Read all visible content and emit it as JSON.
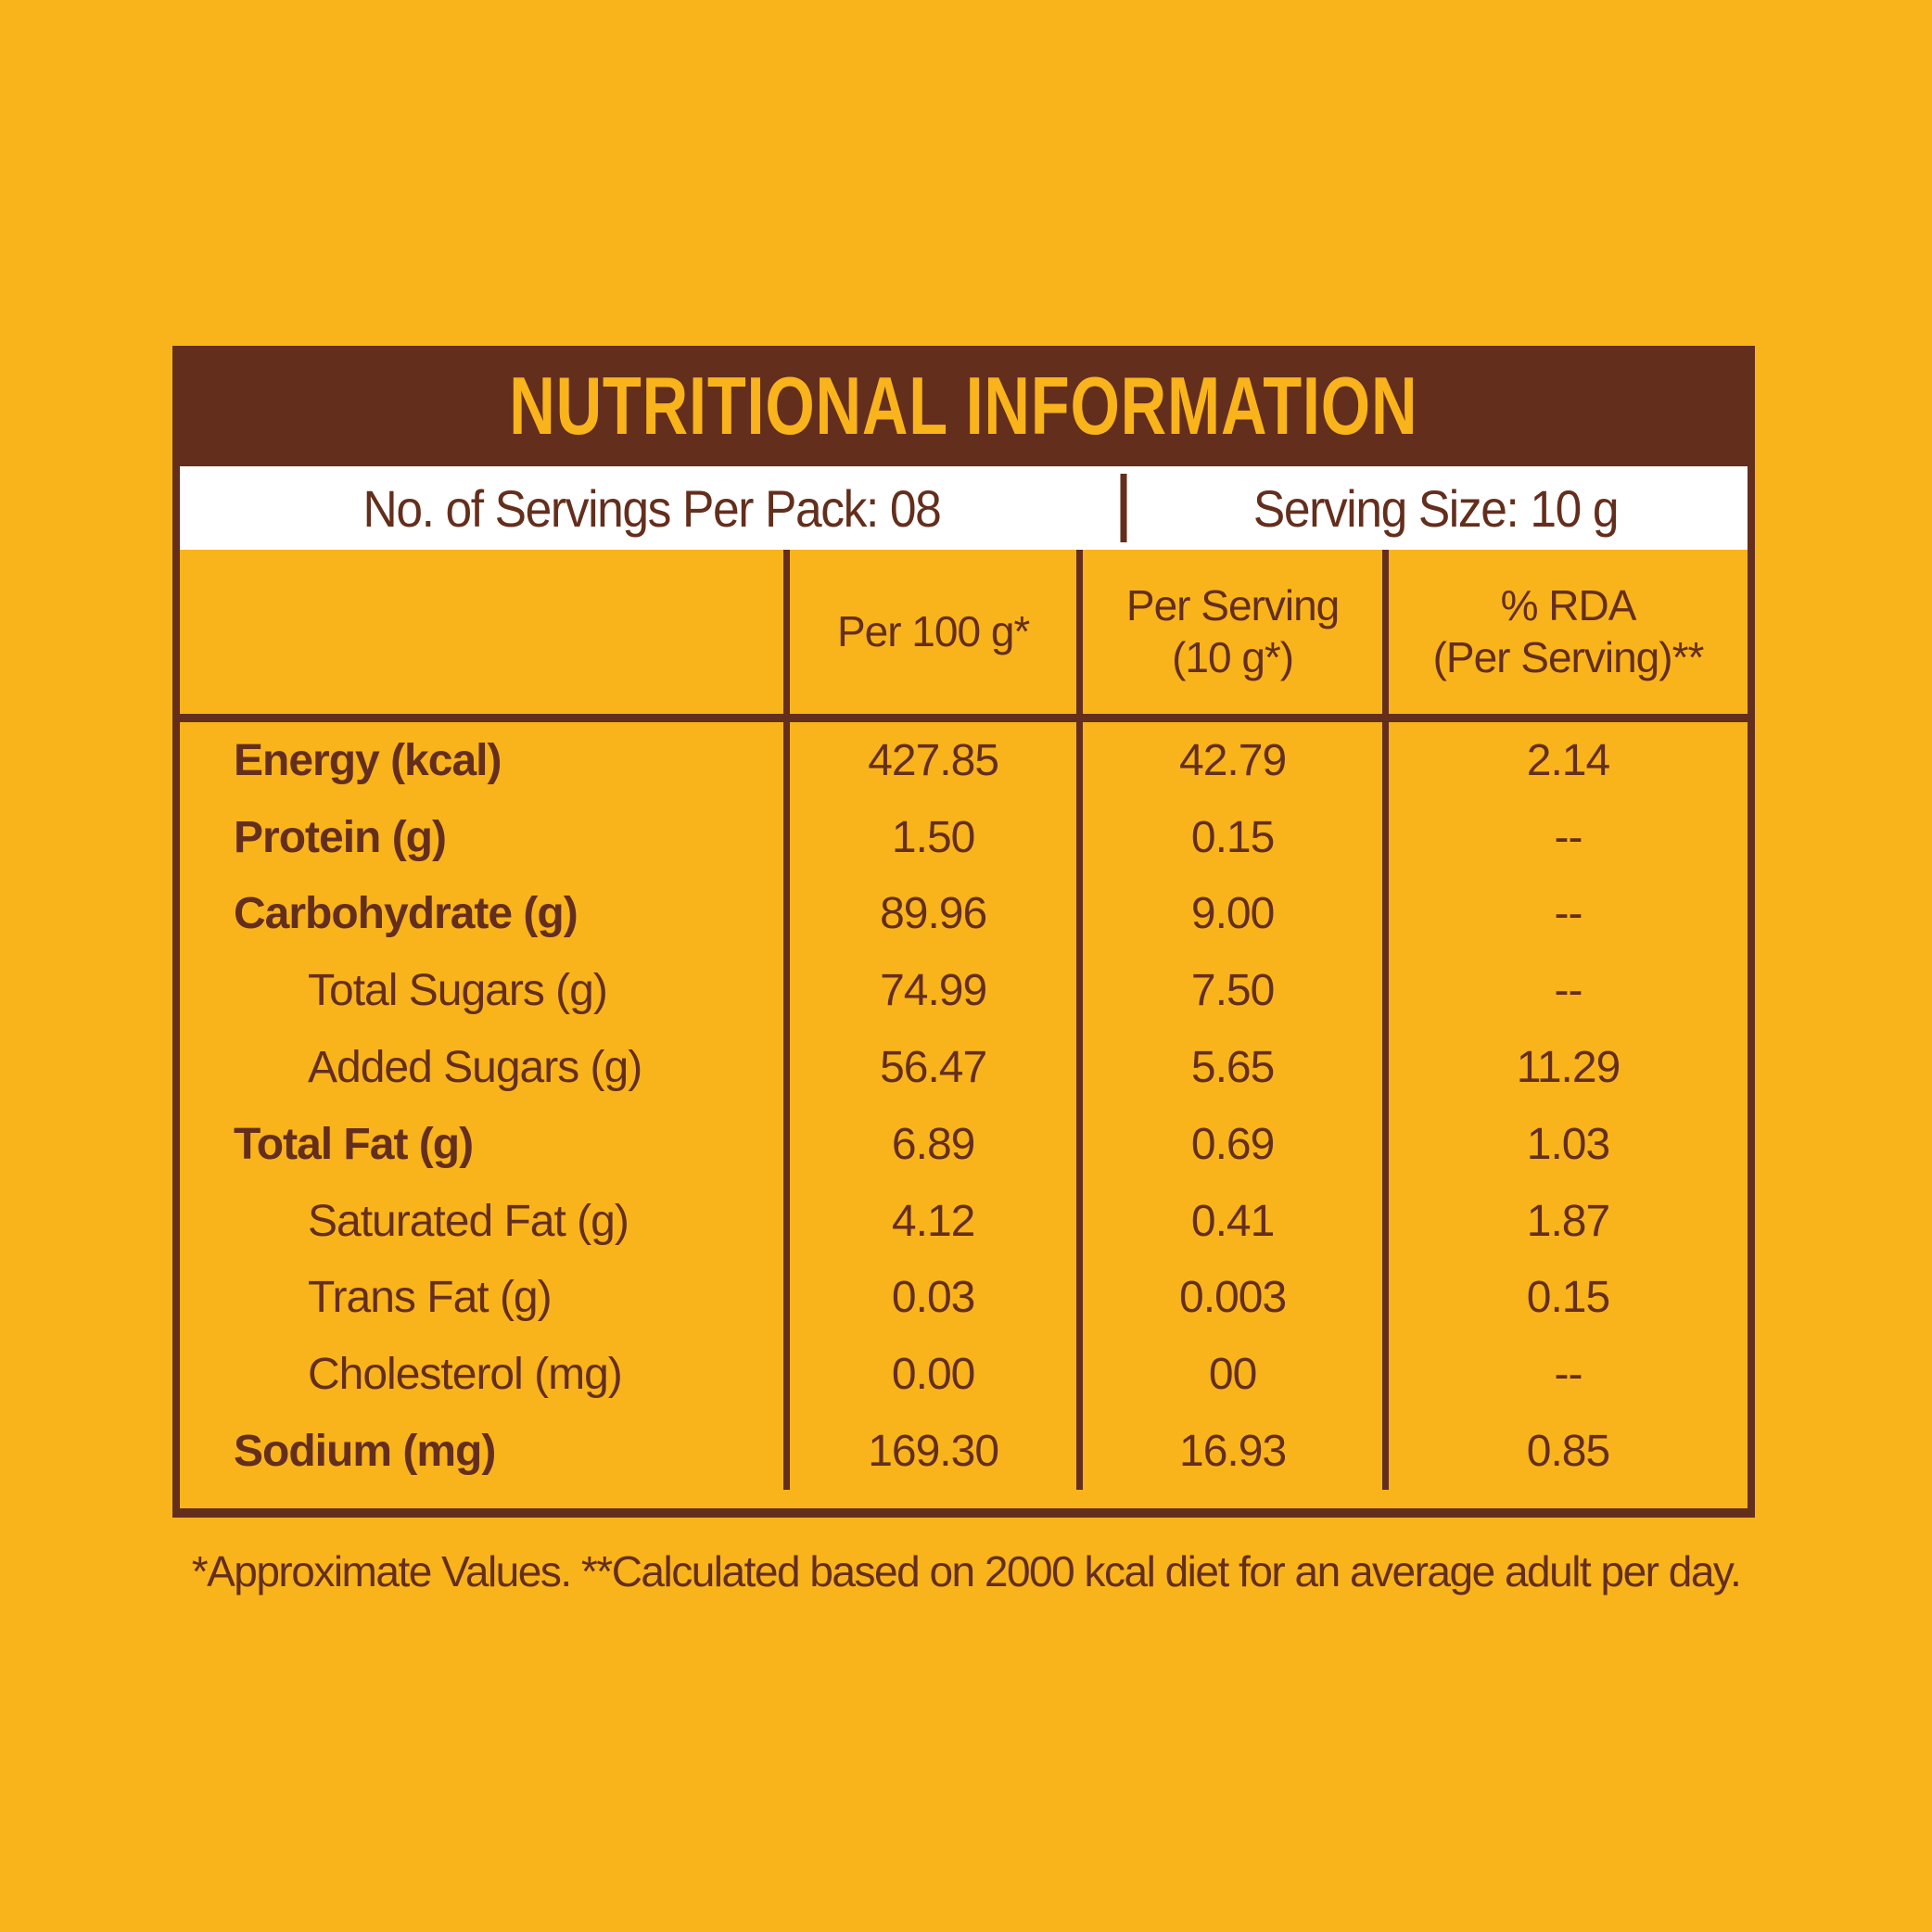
{
  "theme": {
    "bg": "#F9B41C",
    "brown": "#642E1D",
    "white": "#FFFFFF"
  },
  "label": {
    "title": "NUTRITIONAL INFORMATION",
    "servings": {
      "per_pack": "No. of Servings Per Pack: 08",
      "size": "Serving Size: 10 g"
    },
    "table": {
      "column_headers": [
        {
          "line1": "Per 100 g*",
          "line2": ""
        },
        {
          "line1": "Per Serving",
          "line2": "(10 g*)"
        },
        {
          "line1": "% RDA",
          "line2": "(Per Serving)**"
        }
      ],
      "rows": [
        {
          "label": "Energy (kcal)",
          "per_100g": "427.85",
          "per_serving": "42.79",
          "rda": "2.14"
        },
        {
          "label": "Protein (g)",
          "per_100g": "1.50",
          "per_serving": "0.15",
          "rda": "--"
        },
        {
          "label": "Carbohydrate (g)",
          "per_100g": "89.96",
          "per_serving": "9.00",
          "rda": "--"
        },
        {
          "label": "Total Sugars (g)",
          "per_100g": "74.99",
          "per_serving": "7.50",
          "rda": "--"
        },
        {
          "label": "Added Sugars (g)",
          "per_100g": "56.47",
          "per_serving": "5.65",
          "rda": "11.29"
        },
        {
          "label": "Total Fat (g)",
          "per_100g": "6.89",
          "per_serving": "0.69",
          "rda": "1.03"
        },
        {
          "label": "Saturated Fat (g)",
          "per_100g": "4.12",
          "per_serving": "0.41",
          "rda": "1.87"
        },
        {
          "label": "Trans Fat (g)",
          "per_100g": "0.03",
          "per_serving": "0.003",
          "rda": "0.15"
        },
        {
          "label": "Cholesterol (mg)",
          "per_100g": "0.00",
          "per_serving": "00",
          "rda": "--"
        },
        {
          "label": "Sodium (mg)",
          "per_100g": "169.30",
          "per_serving": "16.93",
          "rda": "0.85"
        }
      ]
    },
    "footnote": "*Approximate Values. **Calculated based on 2000 kcal diet for an average adult per day."
  }
}
